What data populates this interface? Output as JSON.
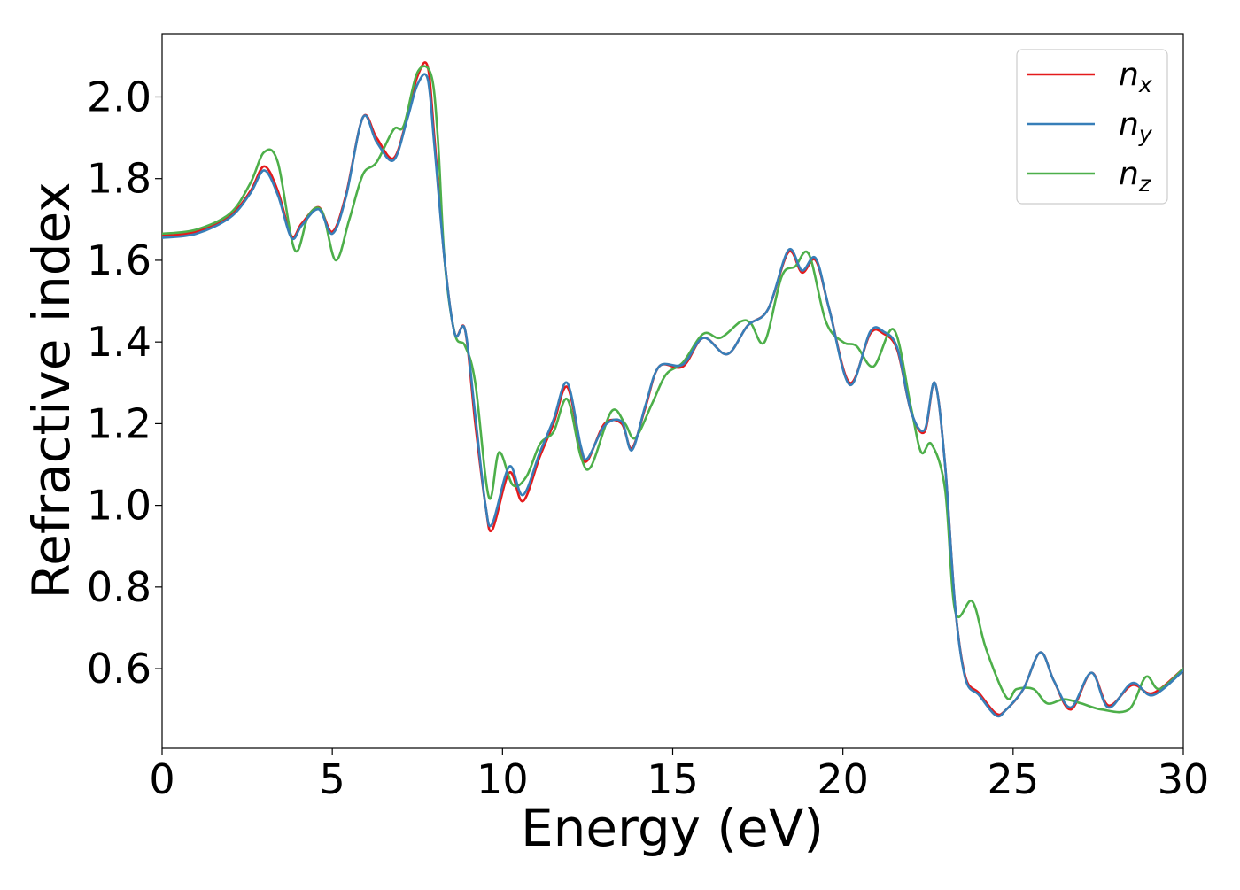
{
  "chart_data": {
    "type": "line",
    "title": "",
    "xlabel": "Energy (eV)",
    "ylabel": "Refractive index",
    "xlim": [
      0,
      30
    ],
    "ylim": [
      0.405,
      2.155
    ],
    "xticks": [
      0,
      5,
      10,
      15,
      20,
      25,
      30
    ],
    "yticks": [
      0.6,
      0.8,
      1.0,
      1.2,
      1.4,
      1.6,
      1.8,
      2.0
    ],
    "xtick_labels": [
      "0",
      "5",
      "10",
      "15",
      "20",
      "25",
      "30"
    ],
    "ytick_labels": [
      "0.6",
      "0.8",
      "1.0",
      "1.2",
      "1.4",
      "1.6",
      "1.8",
      "2.0"
    ],
    "grid": false,
    "legend_position": "top-right",
    "series": [
      {
        "name": "n_x",
        "label_base": "n",
        "label_sub": "x",
        "color": "#e41a1c",
        "points": [
          [
            0,
            1.66
          ],
          [
            1,
            1.67
          ],
          [
            2,
            1.71
          ],
          [
            2.6,
            1.77
          ],
          [
            3.0,
            1.83
          ],
          [
            3.4,
            1.77
          ],
          [
            3.8,
            1.66
          ],
          [
            4.1,
            1.69
          ],
          [
            4.6,
            1.73
          ],
          [
            5.0,
            1.67
          ],
          [
            5.4,
            1.76
          ],
          [
            5.9,
            1.95
          ],
          [
            6.3,
            1.9
          ],
          [
            6.8,
            1.85
          ],
          [
            7.2,
            1.95
          ],
          [
            7.5,
            2.05
          ],
          [
            7.8,
            2.075
          ],
          [
            8.0,
            1.9
          ],
          [
            8.3,
            1.6
          ],
          [
            8.6,
            1.42
          ],
          [
            8.9,
            1.43
          ],
          [
            9.2,
            1.2
          ],
          [
            9.5,
            1.0
          ],
          [
            9.7,
            0.94
          ],
          [
            10.2,
            1.08
          ],
          [
            10.6,
            1.01
          ],
          [
            11.1,
            1.12
          ],
          [
            11.5,
            1.2
          ],
          [
            11.9,
            1.29
          ],
          [
            12.3,
            1.14
          ],
          [
            12.5,
            1.11
          ],
          [
            13.0,
            1.2
          ],
          [
            13.5,
            1.2
          ],
          [
            13.8,
            1.14
          ],
          [
            14.2,
            1.24
          ],
          [
            14.6,
            1.34
          ],
          [
            15.3,
            1.34
          ],
          [
            15.9,
            1.41
          ],
          [
            16.6,
            1.37
          ],
          [
            17.2,
            1.44
          ],
          [
            17.8,
            1.48
          ],
          [
            18.4,
            1.62
          ],
          [
            18.8,
            1.57
          ],
          [
            19.2,
            1.6
          ],
          [
            19.6,
            1.48
          ],
          [
            20.2,
            1.3
          ],
          [
            20.8,
            1.42
          ],
          [
            21.2,
            1.42
          ],
          [
            21.6,
            1.38
          ],
          [
            22.0,
            1.23
          ],
          [
            22.4,
            1.18
          ],
          [
            22.7,
            1.3
          ],
          [
            23.0,
            1.1
          ],
          [
            23.3,
            0.75
          ],
          [
            23.6,
            0.58
          ],
          [
            24.0,
            0.54
          ],
          [
            24.5,
            0.49
          ],
          [
            24.8,
            0.5
          ],
          [
            25.3,
            0.55
          ],
          [
            25.8,
            0.64
          ],
          [
            26.2,
            0.57
          ],
          [
            26.7,
            0.5
          ],
          [
            27.3,
            0.59
          ],
          [
            27.8,
            0.51
          ],
          [
            28.5,
            0.56
          ],
          [
            29.1,
            0.54
          ],
          [
            30.0,
            0.6
          ]
        ]
      },
      {
        "name": "n_y",
        "label_base": "n",
        "label_sub": "y",
        "color": "#377eb8",
        "points": [
          [
            0,
            1.655
          ],
          [
            1,
            1.665
          ],
          [
            2,
            1.705
          ],
          [
            2.6,
            1.765
          ],
          [
            3.0,
            1.82
          ],
          [
            3.4,
            1.76
          ],
          [
            3.8,
            1.655
          ],
          [
            4.1,
            1.685
          ],
          [
            4.6,
            1.725
          ],
          [
            5.0,
            1.665
          ],
          [
            5.4,
            1.755
          ],
          [
            5.9,
            1.95
          ],
          [
            6.3,
            1.89
          ],
          [
            6.8,
            1.845
          ],
          [
            7.2,
            1.945
          ],
          [
            7.5,
            2.03
          ],
          [
            7.8,
            2.045
          ],
          [
            8.0,
            1.88
          ],
          [
            8.3,
            1.6
          ],
          [
            8.6,
            1.42
          ],
          [
            8.9,
            1.43
          ],
          [
            9.2,
            1.22
          ],
          [
            9.5,
            1.0
          ],
          [
            9.7,
            0.955
          ],
          [
            10.2,
            1.095
          ],
          [
            10.6,
            1.025
          ],
          [
            11.1,
            1.13
          ],
          [
            11.5,
            1.21
          ],
          [
            11.9,
            1.3
          ],
          [
            12.3,
            1.145
          ],
          [
            12.5,
            1.115
          ],
          [
            13.0,
            1.195
          ],
          [
            13.5,
            1.205
          ],
          [
            13.8,
            1.135
          ],
          [
            14.2,
            1.245
          ],
          [
            14.6,
            1.34
          ],
          [
            15.3,
            1.345
          ],
          [
            15.9,
            1.41
          ],
          [
            16.6,
            1.37
          ],
          [
            17.2,
            1.44
          ],
          [
            17.8,
            1.48
          ],
          [
            18.4,
            1.625
          ],
          [
            18.8,
            1.575
          ],
          [
            19.2,
            1.605
          ],
          [
            19.6,
            1.48
          ],
          [
            20.2,
            1.295
          ],
          [
            20.8,
            1.425
          ],
          [
            21.2,
            1.425
          ],
          [
            21.6,
            1.385
          ],
          [
            22.0,
            1.23
          ],
          [
            22.4,
            1.185
          ],
          [
            22.7,
            1.3
          ],
          [
            23.0,
            1.1
          ],
          [
            23.3,
            0.75
          ],
          [
            23.6,
            0.575
          ],
          [
            24.0,
            0.535
          ],
          [
            24.5,
            0.485
          ],
          [
            24.8,
            0.5
          ],
          [
            25.3,
            0.55
          ],
          [
            25.8,
            0.64
          ],
          [
            26.2,
            0.57
          ],
          [
            26.7,
            0.505
          ],
          [
            27.3,
            0.59
          ],
          [
            27.8,
            0.505
          ],
          [
            28.5,
            0.565
          ],
          [
            29.1,
            0.535
          ],
          [
            30.0,
            0.595
          ]
        ]
      },
      {
        "name": "n_z",
        "label_base": "n",
        "label_sub": "z",
        "color": "#4daf4a",
        "points": [
          [
            0,
            1.665
          ],
          [
            1,
            1.675
          ],
          [
            2,
            1.715
          ],
          [
            2.6,
            1.79
          ],
          [
            3.0,
            1.865
          ],
          [
            3.4,
            1.84
          ],
          [
            3.9,
            1.625
          ],
          [
            4.3,
            1.71
          ],
          [
            4.7,
            1.72
          ],
          [
            5.1,
            1.6
          ],
          [
            5.5,
            1.7
          ],
          [
            5.9,
            1.81
          ],
          [
            6.3,
            1.84
          ],
          [
            6.8,
            1.92
          ],
          [
            7.1,
            1.93
          ],
          [
            7.5,
            2.06
          ],
          [
            7.9,
            2.055
          ],
          [
            8.1,
            1.9
          ],
          [
            8.3,
            1.6
          ],
          [
            8.6,
            1.42
          ],
          [
            8.9,
            1.39
          ],
          [
            9.2,
            1.3
          ],
          [
            9.6,
            1.02
          ],
          [
            9.9,
            1.13
          ],
          [
            10.3,
            1.05
          ],
          [
            10.7,
            1.07
          ],
          [
            11.1,
            1.15
          ],
          [
            11.5,
            1.18
          ],
          [
            11.9,
            1.26
          ],
          [
            12.3,
            1.12
          ],
          [
            12.6,
            1.095
          ],
          [
            13.2,
            1.23
          ],
          [
            13.6,
            1.2
          ],
          [
            13.9,
            1.165
          ],
          [
            14.4,
            1.25
          ],
          [
            14.8,
            1.32
          ],
          [
            15.3,
            1.35
          ],
          [
            15.9,
            1.42
          ],
          [
            16.4,
            1.41
          ],
          [
            17.0,
            1.45
          ],
          [
            17.3,
            1.445
          ],
          [
            17.7,
            1.4
          ],
          [
            18.2,
            1.56
          ],
          [
            18.6,
            1.585
          ],
          [
            19.0,
            1.615
          ],
          [
            19.5,
            1.45
          ],
          [
            20.0,
            1.4
          ],
          [
            20.4,
            1.39
          ],
          [
            20.9,
            1.34
          ],
          [
            21.5,
            1.43
          ],
          [
            22.0,
            1.24
          ],
          [
            22.3,
            1.13
          ],
          [
            22.6,
            1.15
          ],
          [
            23.0,
            1.04
          ],
          [
            23.3,
            0.74
          ],
          [
            23.8,
            0.765
          ],
          [
            24.2,
            0.65
          ],
          [
            24.8,
            0.53
          ],
          [
            25.1,
            0.55
          ],
          [
            25.6,
            0.55
          ],
          [
            26.0,
            0.515
          ],
          [
            26.5,
            0.525
          ],
          [
            27.0,
            0.515
          ],
          [
            27.6,
            0.5
          ],
          [
            28.4,
            0.5
          ],
          [
            28.9,
            0.58
          ],
          [
            29.3,
            0.55
          ],
          [
            30.0,
            0.6
          ]
        ]
      }
    ]
  }
}
